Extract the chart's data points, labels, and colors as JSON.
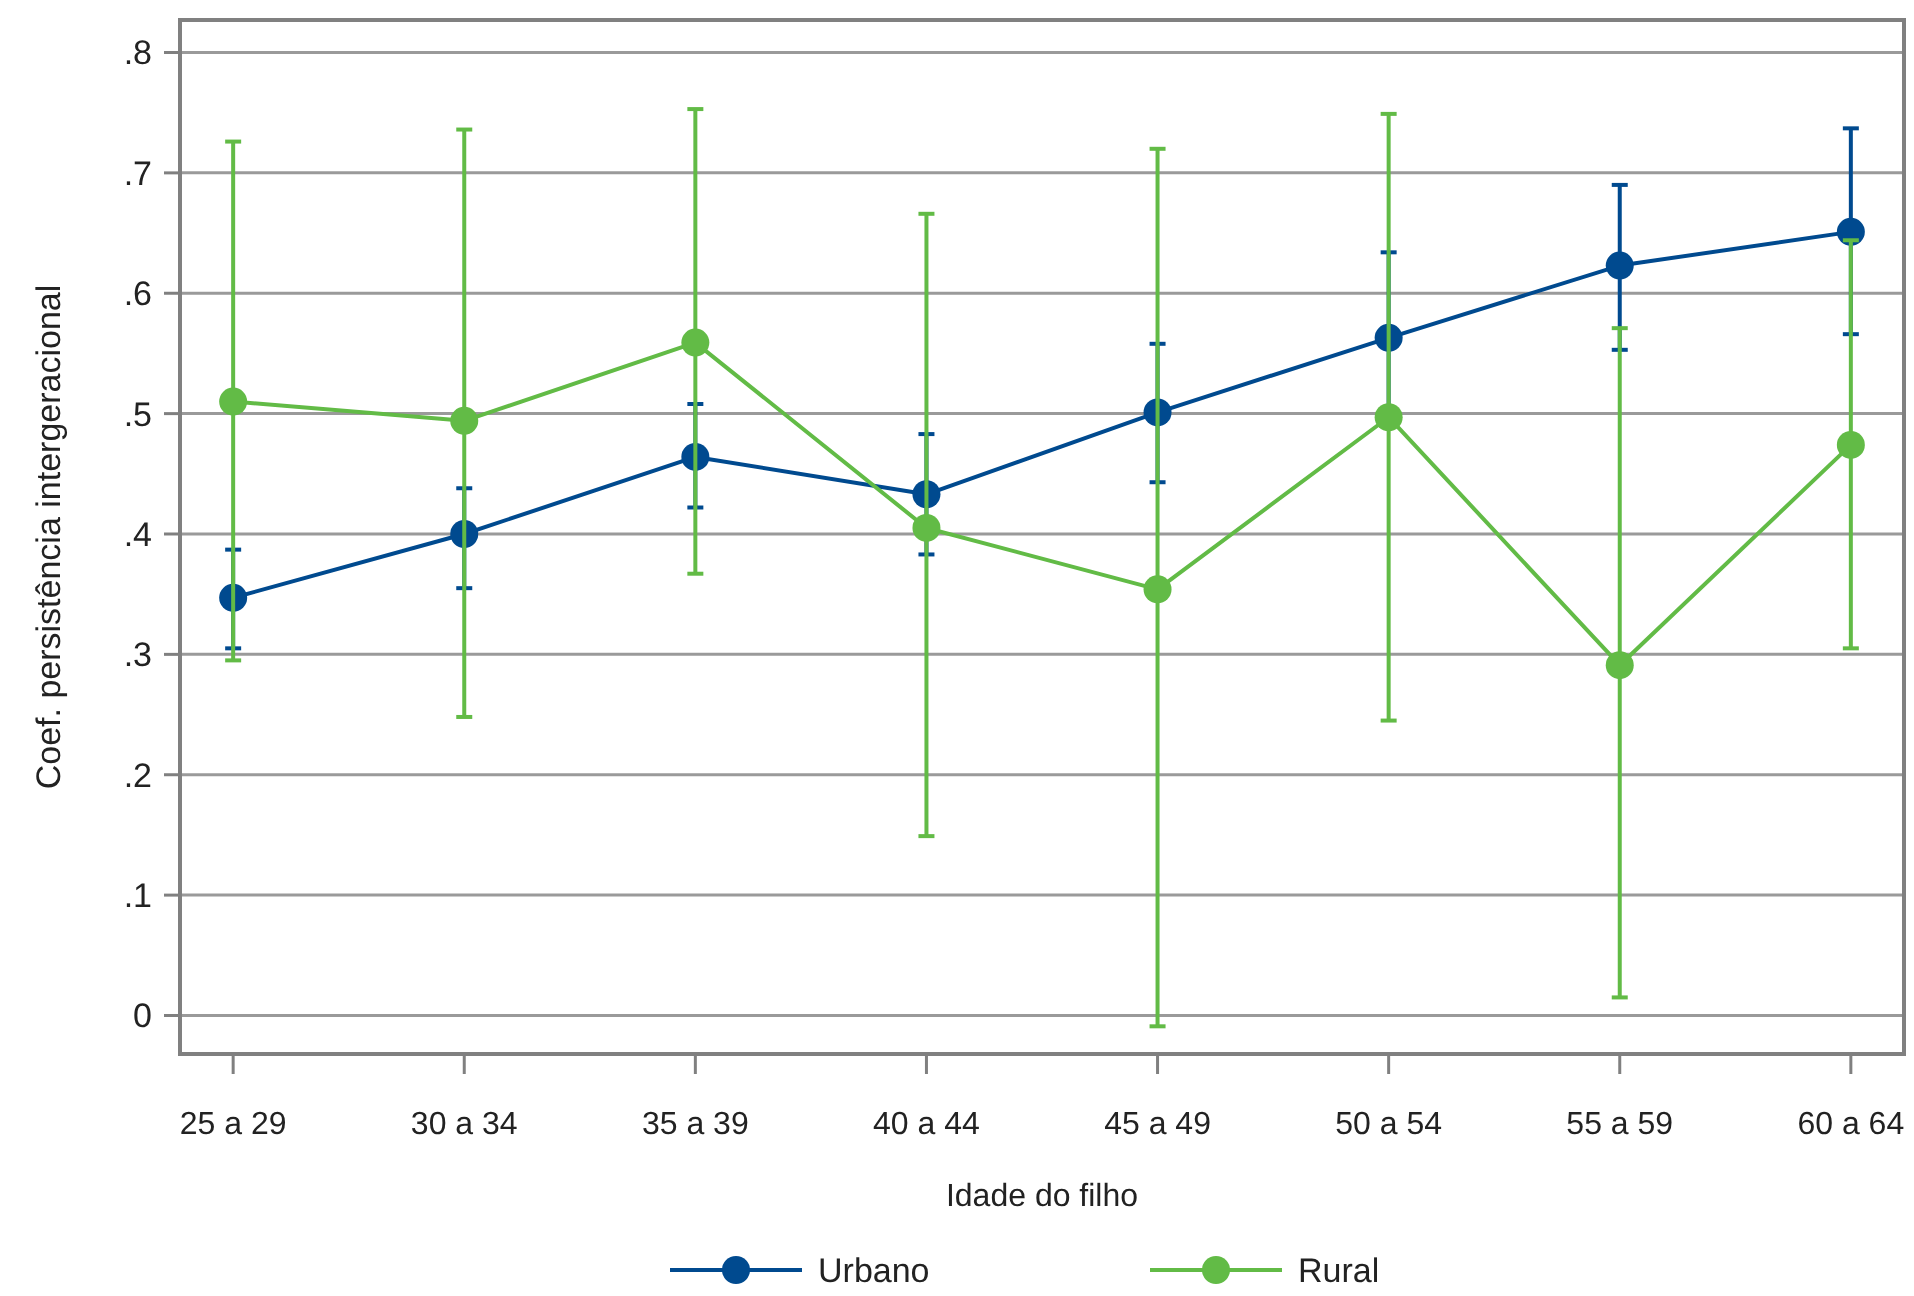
{
  "chart_data": {
    "type": "line",
    "xlabel": "Idade do filho",
    "ylabel": "Coef. persistência intergeracional",
    "categories": [
      "25 a 29",
      "30 a 34",
      "35 a 39",
      "40 a 44",
      "45 a 49",
      "50 a 54",
      "55 a 59",
      "60 a 64"
    ],
    "series": [
      {
        "name": "Urbano",
        "color": "#004a8f",
        "values": [
          0.347,
          0.4,
          0.464,
          0.433,
          0.501,
          0.563,
          0.623,
          0.651
        ],
        "errors": [
          [
            0.305,
            0.387
          ],
          [
            0.355,
            0.438
          ],
          [
            0.422,
            0.508
          ],
          [
            0.383,
            0.483
          ],
          [
            0.443,
            0.558
          ],
          [
            0.49,
            0.634
          ],
          [
            0.553,
            0.69
          ],
          [
            0.566,
            0.737
          ]
        ]
      },
      {
        "name": "Rural",
        "color": "#62bb46",
        "values": [
          0.51,
          0.494,
          0.559,
          0.405,
          0.354,
          0.497,
          0.291,
          0.474
        ],
        "errors": [
          [
            0.295,
            0.726
          ],
          [
            0.248,
            0.736
          ],
          [
            0.367,
            0.753
          ],
          [
            0.149,
            0.666
          ],
          [
            -0.009,
            0.72
          ],
          [
            0.245,
            0.749
          ],
          [
            0.015,
            0.571
          ],
          [
            0.305,
            0.644
          ]
        ]
      }
    ],
    "ylim": [
      -0.032,
      0.827
    ],
    "yticks": [
      {
        "value": 0,
        "label": "0"
      },
      {
        "value": 0.1,
        "label": ".1"
      },
      {
        "value": 0.2,
        "label": ".2"
      },
      {
        "value": 0.3,
        "label": ".3"
      },
      {
        "value": 0.4,
        "label": ".4"
      },
      {
        "value": 0.5,
        "label": ".5"
      },
      {
        "value": 0.6,
        "label": ".6"
      },
      {
        "value": 0.7,
        "label": ".7"
      },
      {
        "value": 0.8,
        "label": ".8"
      }
    ],
    "grid": "y",
    "legend": "bottom",
    "marker": "circle",
    "line_style": "solid"
  }
}
